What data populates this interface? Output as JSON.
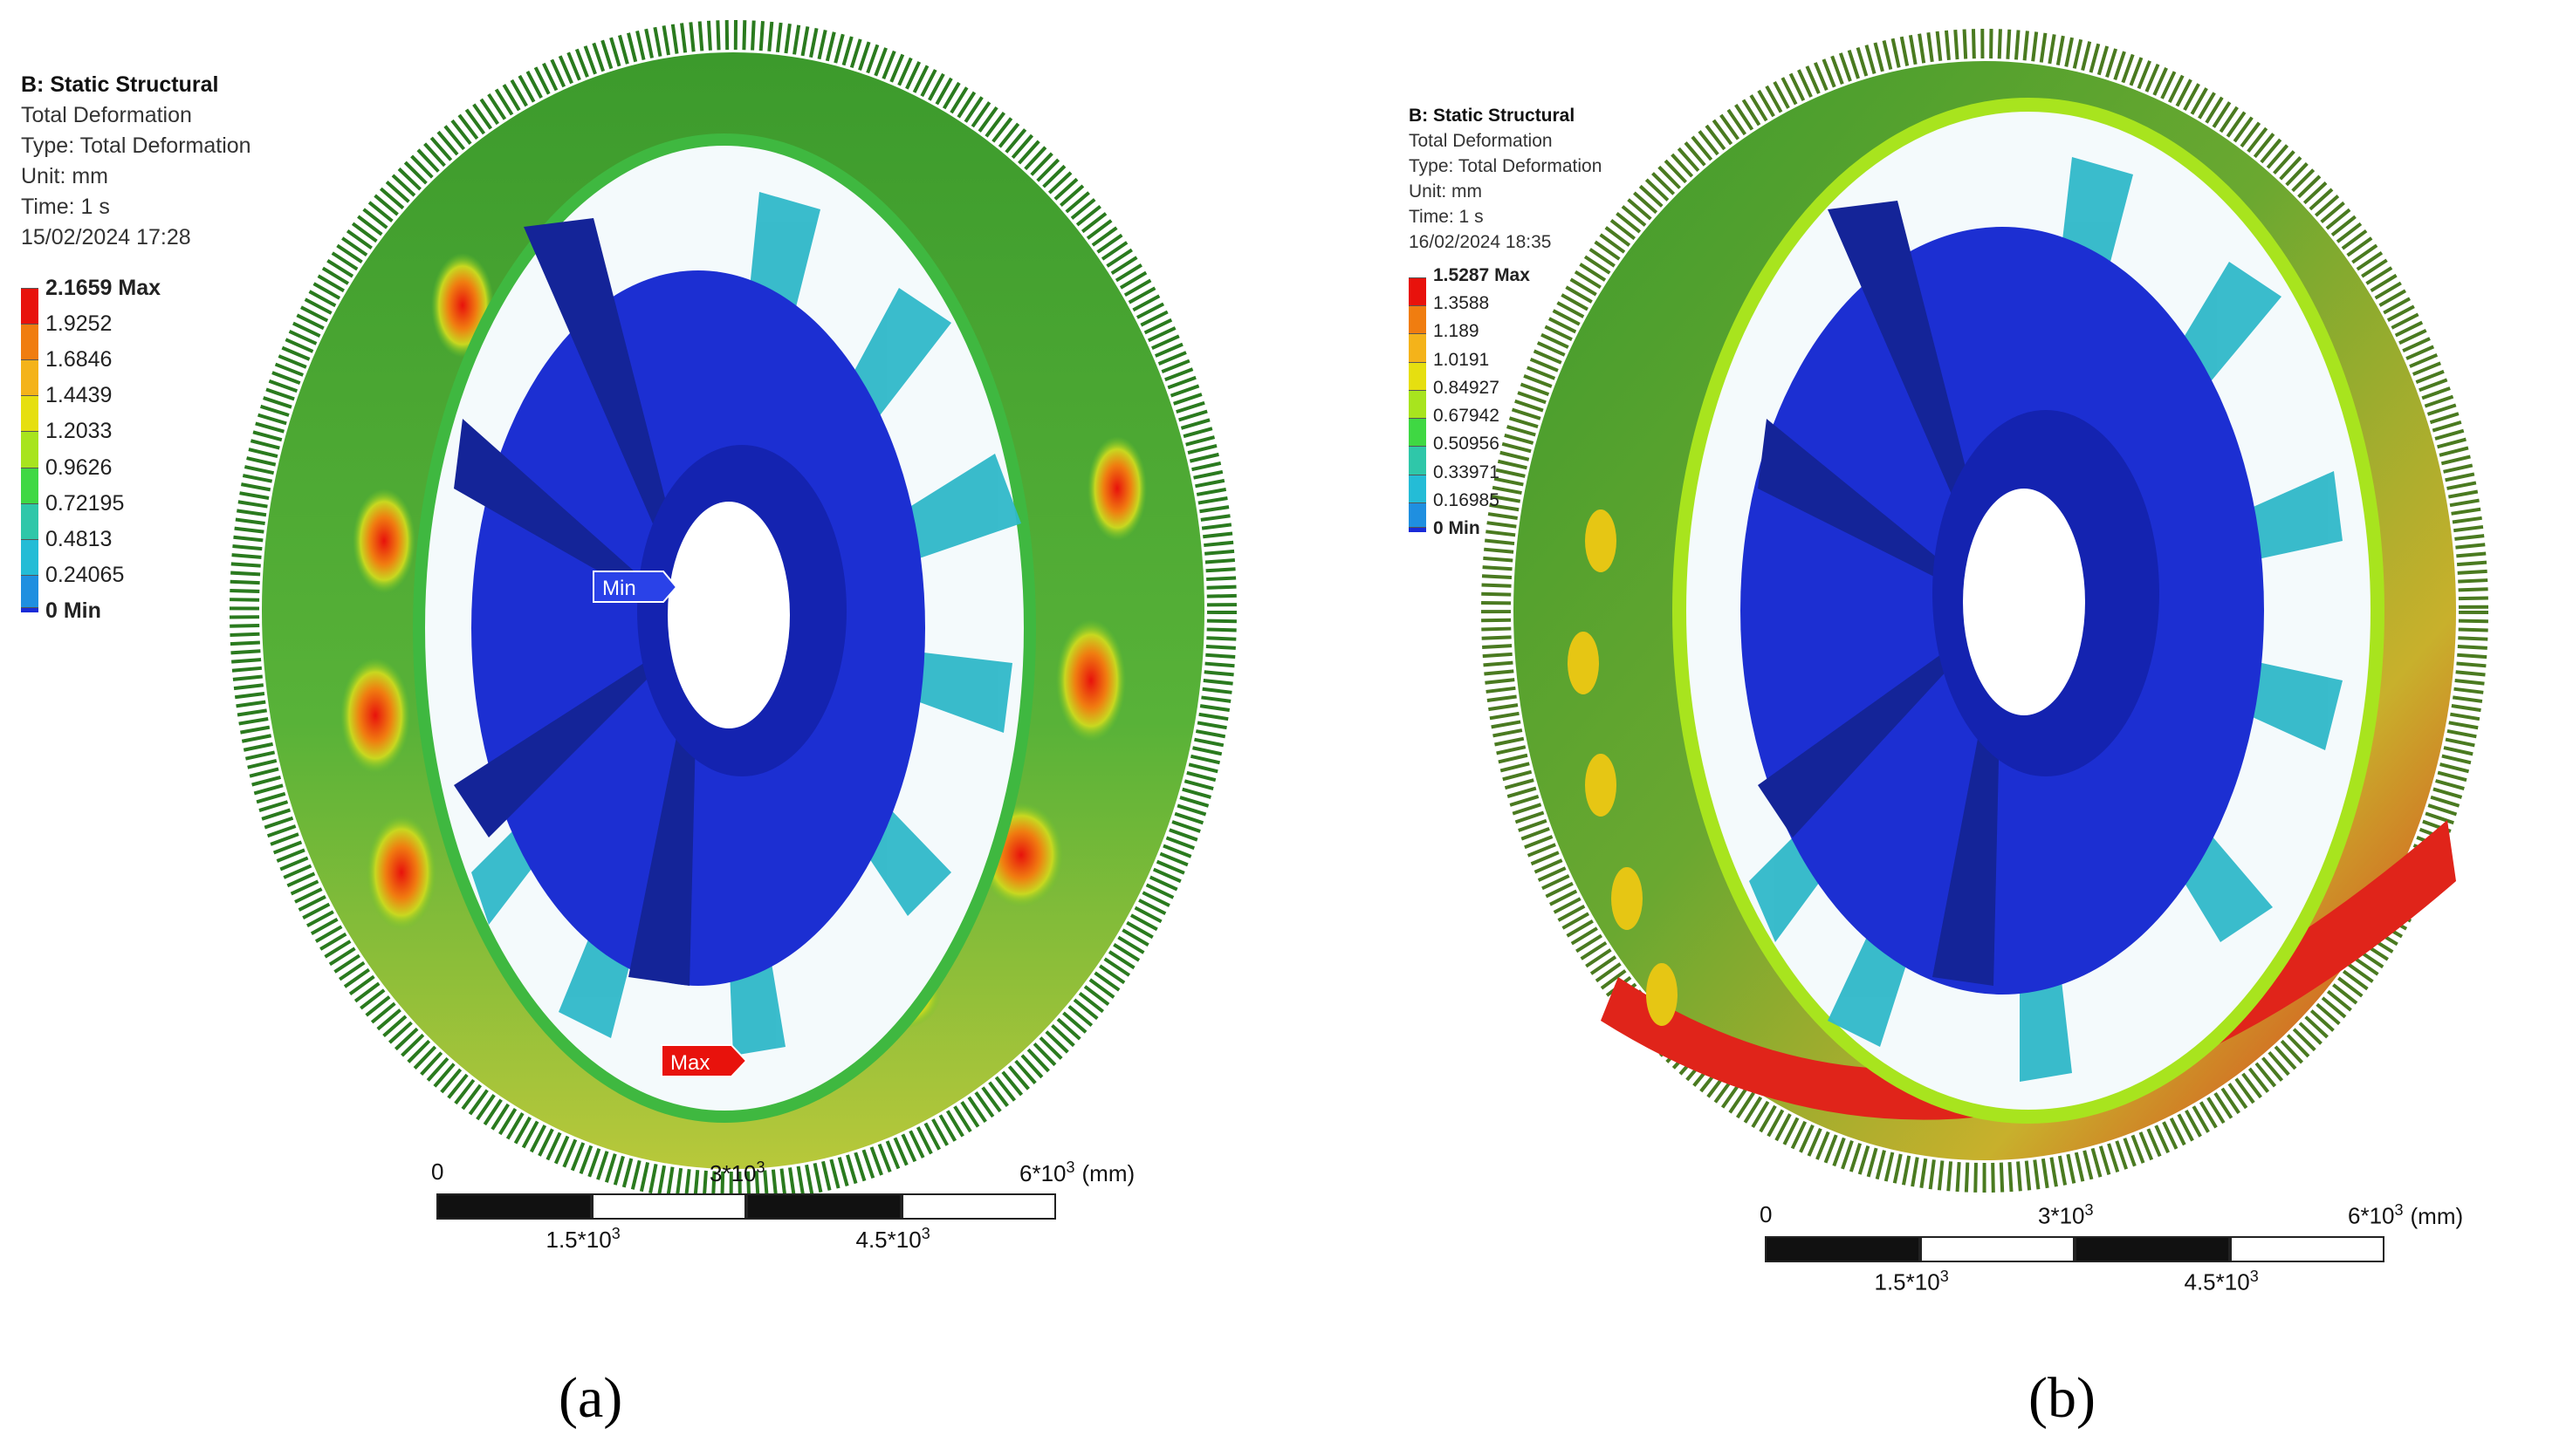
{
  "panel_a": {
    "legend": {
      "title": "B: Static Structural",
      "lines": [
        "Total Deformation",
        "Type: Total Deformation",
        "Unit: mm",
        "Time: 1 s",
        "15/02/2024 17:28"
      ]
    },
    "colorbar": {
      "labels": [
        "2.1659 Max",
        "1.9252",
        "1.6846",
        "1.4439",
        "1.2033",
        "0.9626",
        "0.72195",
        "0.4813",
        "0.24065",
        "0 Min"
      ],
      "colors": [
        "#e8120c",
        "#f07d10",
        "#f4b31a",
        "#e6df10",
        "#a8e41e",
        "#3fd843",
        "#2fc7a9",
        "#24bcd6",
        "#1f8fe0",
        "#1a2bd8"
      ]
    },
    "markers": {
      "min": "Min",
      "max": "Max"
    },
    "scale": {
      "ticks_top": [
        "0",
        "3*10",
        "6*10"
      ],
      "exp": "3",
      "unit": "(mm)",
      "ticks_bottom": [
        "1.5*10",
        "4.5*10"
      ]
    },
    "label": "(a)"
  },
  "panel_b": {
    "legend": {
      "title": "B: Static Structural",
      "lines": [
        "Total Deformation",
        "Type: Total Deformation",
        "Unit: mm",
        "Time: 1 s",
        "16/02/2024 18:35"
      ]
    },
    "colorbar": {
      "labels": [
        "1.5287 Max",
        "1.3588",
        "1.189",
        "1.0191",
        "0.84927",
        "0.67942",
        "0.50956",
        "0.33971",
        "0.16985",
        "0 Min"
      ],
      "colors": [
        "#e8120c",
        "#f07d10",
        "#f4b31a",
        "#e6df10",
        "#a8e41e",
        "#3fd843",
        "#2fc7a9",
        "#24bcd6",
        "#1f8fe0",
        "#1a2bd8"
      ]
    },
    "scale": {
      "ticks_top": [
        "0",
        "3*10",
        "6*10"
      ],
      "exp": "3",
      "unit": "(mm)",
      "ticks_bottom": [
        "1.5*10",
        "4.5*10"
      ]
    },
    "label": "(b)"
  }
}
